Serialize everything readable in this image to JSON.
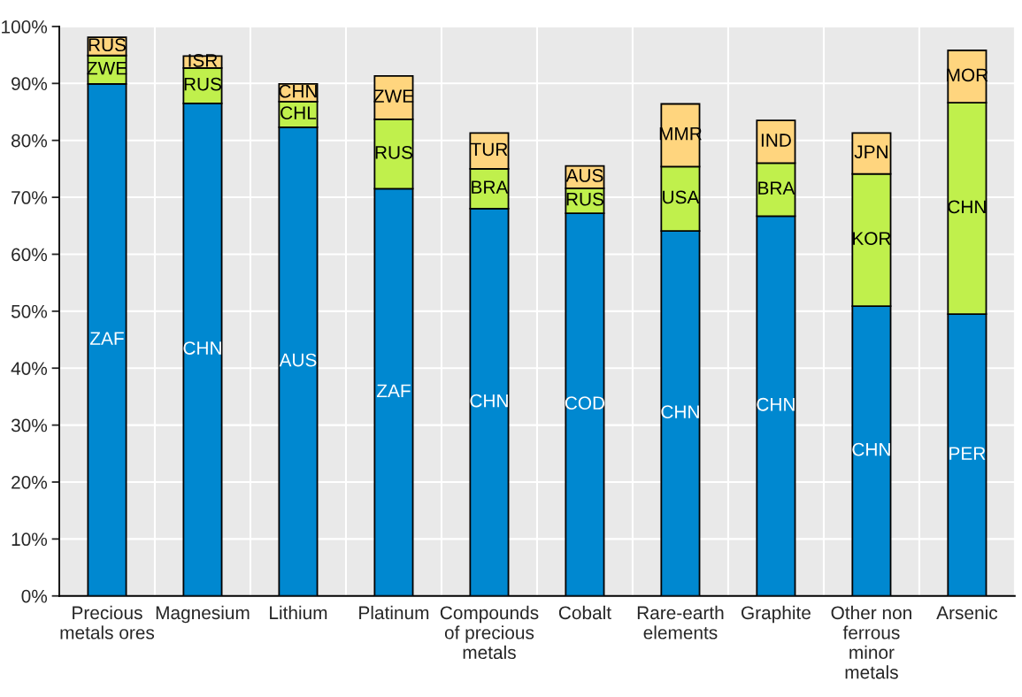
{
  "chart_data": {
    "type": "bar",
    "stacked": true,
    "categories": [
      "Precious\nmetals ores",
      "Magnesium",
      "Lithium",
      "Platinum",
      "Compounds\nof precious\nmetals",
      "Cobalt",
      "Rare-earth\nelements",
      "Graphite",
      "Other non\nferrous\nminor\nmetals",
      "Arsenic"
    ],
    "series": [
      {
        "color": "#0088d0",
        "values": [
          89.9,
          86.5,
          82.3,
          71.5,
          68.0,
          67.2,
          64.1,
          66.7,
          50.9,
          49.5
        ],
        "value_labels": [
          "ZAF",
          "CHN",
          "AUS",
          "ZAF",
          "CHN",
          "COD",
          "CHN",
          "CHN",
          "CHN",
          "PER"
        ]
      },
      {
        "color": "#c0f04c",
        "values": [
          5.0,
          6.2,
          4.5,
          12.2,
          7.0,
          4.4,
          11.3,
          9.3,
          23.2,
          37.1
        ],
        "value_labels": [
          "ZWE",
          "RUS",
          "CHL",
          "RUS",
          "BRA",
          "RUS",
          "USA",
          "BRA",
          "KOR",
          "CHN"
        ]
      },
      {
        "color": "#ffd57e",
        "values": [
          3.2,
          2.1,
          3.1,
          7.6,
          6.3,
          3.9,
          11.0,
          7.5,
          7.2,
          9.2
        ],
        "value_labels": [
          "RUS",
          "ISR",
          "CHN",
          "ZWE",
          "TUR",
          "AUS",
          "MMR",
          "IND",
          "JPN",
          "MOR"
        ]
      }
    ],
    "ylim": [
      0,
      100
    ],
    "yticks": [
      {
        "value": 0,
        "label": "0%"
      },
      {
        "value": 10,
        "label": "10%"
      },
      {
        "value": 20,
        "label": "20%"
      },
      {
        "value": 30,
        "label": "30%"
      },
      {
        "value": 40,
        "label": "40%"
      },
      {
        "value": 50,
        "label": "50%"
      },
      {
        "value": 60,
        "label": "60%"
      },
      {
        "value": 70,
        "label": "70%"
      },
      {
        "value": 80,
        "label": "80%"
      },
      {
        "value": 90,
        "label": "90%"
      },
      {
        "value": 100,
        "label": "100%"
      }
    ],
    "grid": true
  }
}
